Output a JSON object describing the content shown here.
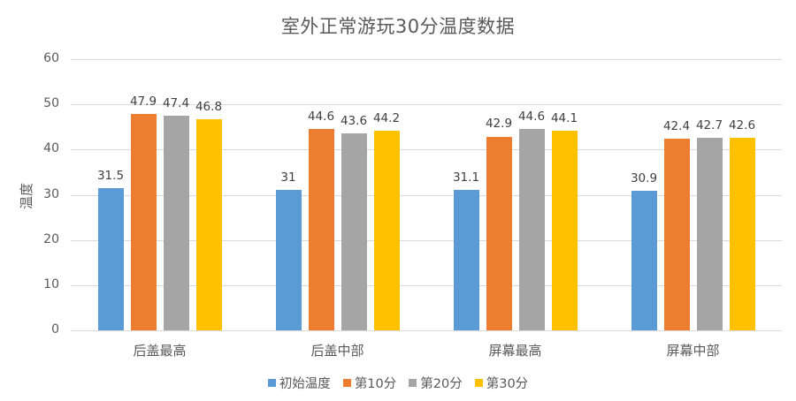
{
  "chart_data": {
    "type": "bar",
    "title": "室外正常游玩30分温度数据",
    "xlabel": "",
    "ylabel": "温度",
    "ylim": [
      0,
      60
    ],
    "yticks": [
      0,
      10,
      20,
      30,
      40,
      50,
      60
    ],
    "grid": true,
    "legend_position": "bottom",
    "categories": [
      "后盖最高",
      "后盖中部",
      "屏幕最高",
      "屏幕中部"
    ],
    "series": [
      {
        "name": "初始温度",
        "color": "#5b9bd5",
        "values": [
          31.5,
          31,
          31.1,
          30.9
        ]
      },
      {
        "name": "第10分",
        "color": "#ed7d31",
        "values": [
          47.9,
          44.6,
          42.9,
          42.4
        ]
      },
      {
        "name": "第20分",
        "color": "#a5a5a5",
        "values": [
          47.4,
          43.6,
          44.6,
          42.7
        ]
      },
      {
        "name": "第30分",
        "color": "#ffc000",
        "values": [
          46.8,
          44.2,
          44.1,
          42.6
        ]
      }
    ]
  }
}
